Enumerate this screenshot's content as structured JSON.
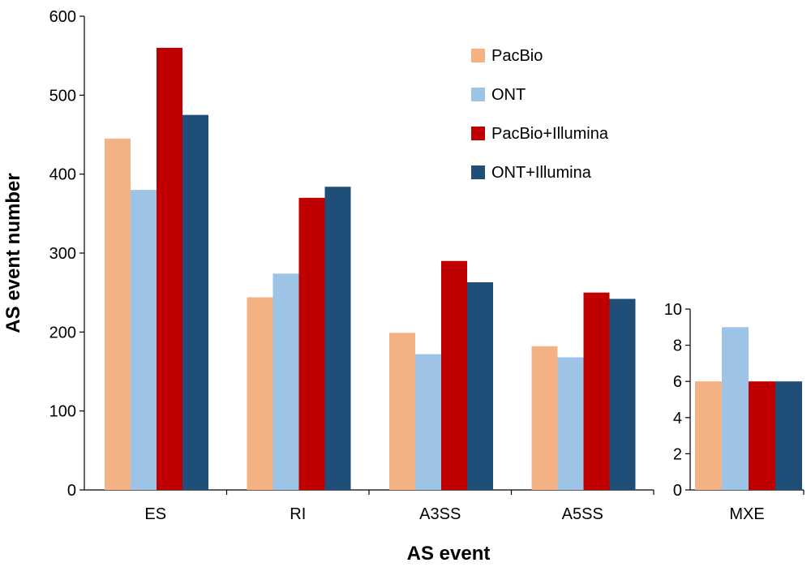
{
  "chart_data": [
    {
      "type": "bar",
      "xlabel": "AS event",
      "ylabel": "AS event number",
      "ylim": [
        0,
        600
      ],
      "yticks": [
        0,
        100,
        200,
        300,
        400,
        500,
        600
      ],
      "categories": [
        "ES",
        "RI",
        "A3SS",
        "A5SS"
      ],
      "series": [
        {
          "name": "PacBio",
          "color": "#F4B183",
          "values": [
            445,
            244,
            199,
            182
          ]
        },
        {
          "name": "ONT",
          "color": "#9DC3E6",
          "values": [
            380,
            274,
            172,
            168
          ]
        },
        {
          "name": "PacBio+Illumina",
          "color": "#C00000",
          "values": [
            560,
            370,
            290,
            250
          ]
        },
        {
          "name": "ONT+Illumina",
          "color": "#1F4E79",
          "values": [
            475,
            384,
            263,
            242
          ]
        }
      ],
      "legend_position": "top-right",
      "grid": false
    },
    {
      "type": "bar",
      "ylim": [
        0,
        10
      ],
      "yticks": [
        0,
        2,
        4,
        6,
        8,
        10
      ],
      "categories": [
        "MXE"
      ],
      "series": [
        {
          "name": "PacBio",
          "color": "#F4B183",
          "values": [
            6
          ]
        },
        {
          "name": "ONT",
          "color": "#9DC3E6",
          "values": [
            9
          ]
        },
        {
          "name": "PacBio+Illumina",
          "color": "#C00000",
          "values": [
            6
          ]
        },
        {
          "name": "ONT+Illumina",
          "color": "#1F4E79",
          "values": [
            6
          ]
        }
      ],
      "grid": false
    }
  ]
}
